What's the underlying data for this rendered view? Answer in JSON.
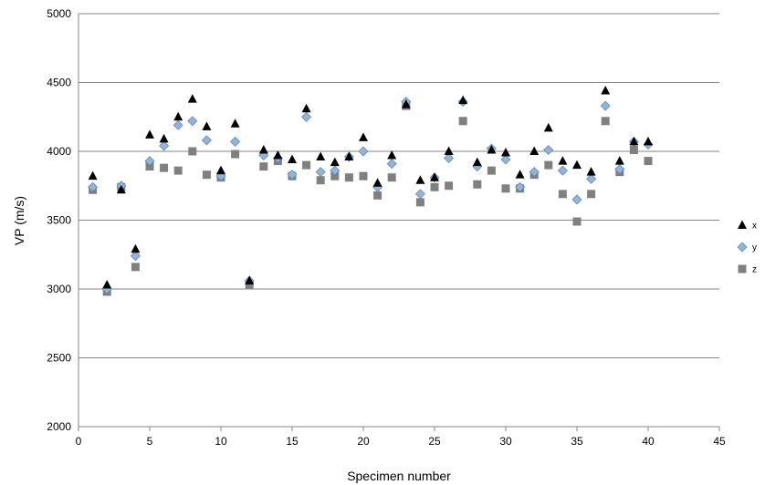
{
  "chart_data": {
    "type": "scatter",
    "title": "",
    "xlabel": "Specimen number",
    "ylabel": "VP (m/s)",
    "xlim": [
      0,
      45
    ],
    "ylim": [
      2000,
      5000
    ],
    "xticks": [
      0,
      5,
      10,
      15,
      20,
      25,
      30,
      35,
      40,
      45
    ],
    "yticks": [
      2000,
      2500,
      3000,
      3500,
      4000,
      4500,
      5000
    ],
    "grid": "horizontal",
    "legend": "right",
    "x": [
      1,
      2,
      3,
      4,
      5,
      6,
      7,
      8,
      9,
      10,
      11,
      12,
      13,
      14,
      15,
      16,
      17,
      18,
      19,
      20,
      21,
      22,
      23,
      24,
      25,
      26,
      27,
      28,
      29,
      30,
      31,
      32,
      33,
      34,
      35,
      36,
      37,
      38,
      39,
      40
    ],
    "series": [
      {
        "name": "x",
        "marker": "triangle",
        "color": "#000000",
        "values": [
          3820,
          3030,
          3720,
          3290,
          4120,
          4090,
          4250,
          4380,
          4180,
          3860,
          4200,
          3060,
          4010,
          3970,
          3940,
          4310,
          3960,
          3920,
          3960,
          4100,
          3770,
          3970,
          4340,
          3790,
          3810,
          4000,
          4370,
          3920,
          4010,
          3990,
          3830,
          4000,
          4170,
          3930,
          3900,
          3850,
          4440,
          3930,
          4070,
          4070
        ]
      },
      {
        "name": "y",
        "marker": "diamond",
        "color": "#95b3d7",
        "values": [
          3740,
          3000,
          3750,
          3240,
          3930,
          4040,
          4190,
          4220,
          4080,
          3820,
          4070,
          3060,
          3970,
          3950,
          3830,
          4250,
          3850,
          3860,
          3960,
          4000,
          3740,
          3910,
          4360,
          3690,
          3810,
          3950,
          4360,
          3890,
          4020,
          3940,
          3740,
          3850,
          4010,
          3860,
          3650,
          3800,
          4330,
          3870,
          4070,
          4050
        ]
      },
      {
        "name": "z",
        "marker": "square",
        "color": "#808080",
        "values": [
          3720,
          2980,
          3740,
          3160,
          3890,
          3880,
          3860,
          4000,
          3830,
          3810,
          3980,
          3030,
          3890,
          3930,
          3820,
          3900,
          3790,
          3820,
          3810,
          3820,
          3680,
          3810,
          4330,
          3630,
          3740,
          3750,
          4220,
          3760,
          3860,
          3730,
          3730,
          3830,
          3900,
          3690,
          3490,
          3690,
          4220,
          3850,
          4010,
          3930
        ]
      }
    ]
  }
}
